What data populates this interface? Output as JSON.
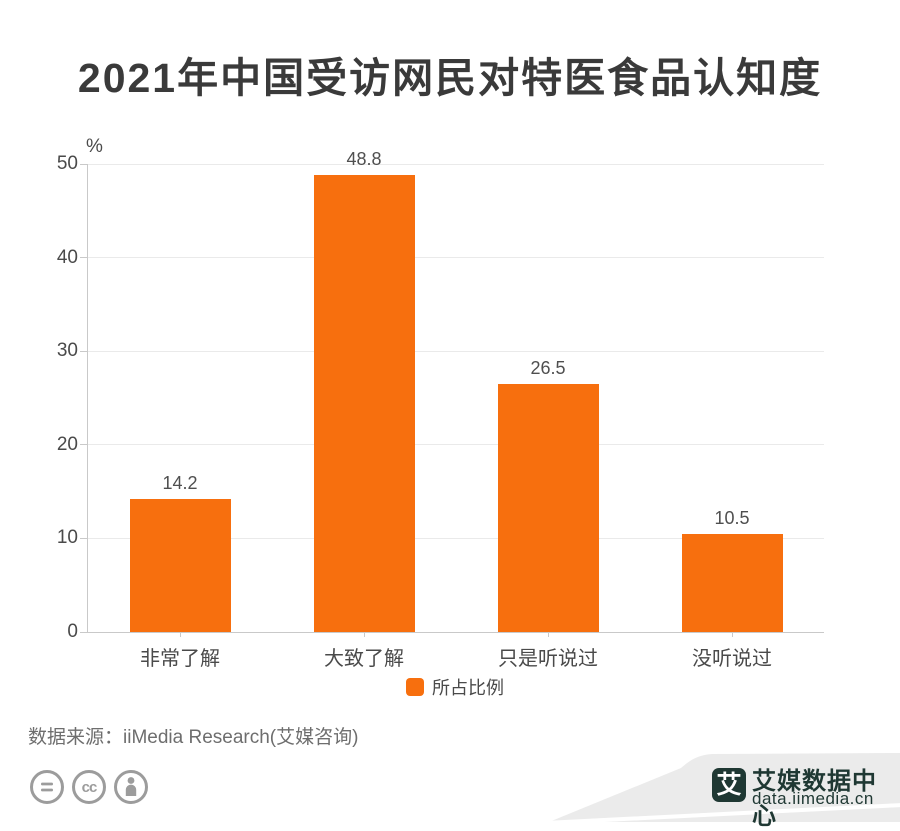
{
  "chart_data": {
    "type": "bar",
    "title": "2021年中国受访网民对特医食品认知度",
    "unit_label": "%",
    "categories": [
      "非常了解",
      "大致了解",
      "只是听说过",
      "没听说过"
    ],
    "series": [
      {
        "name": "所占比例",
        "values": [
          14.2,
          48.8,
          26.5,
          10.5
        ]
      }
    ],
    "value_labels": [
      "14.2",
      "48.8",
      "26.5",
      "10.5"
    ],
    "ylim": [
      0,
      50
    ],
    "yticks": [
      0,
      10,
      20,
      30,
      40,
      50
    ],
    "grid": true,
    "legend_position": "bottom",
    "bar_color": "#F76F0E"
  },
  "legend": {
    "label": "所占比例",
    "swatch_color": "#F76F0E"
  },
  "footer": {
    "source": "数据来源：iiMedia Research(艾媒咨询)"
  },
  "license": {
    "icons": [
      "equals-icon",
      "cc-icon",
      "attribution-person-icon"
    ],
    "color": "#9c9c9c"
  },
  "branding": {
    "logo_mark": "艾",
    "logo_name": "艾媒数据中心",
    "logo_url": "data.iimedia.cn",
    "logo_color": "#1f3833",
    "swoosh_color": "#ebebeb"
  }
}
